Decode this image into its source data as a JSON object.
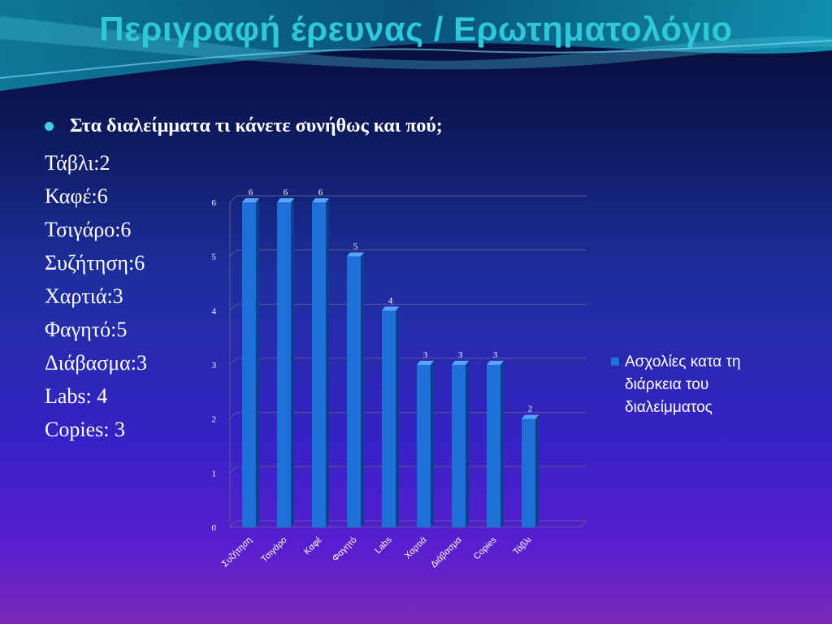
{
  "slide": {
    "title": "Περιγραφή έρευνας / Ερωτηματολόγιο",
    "bullet": "Στα διαλείμματα τι κάνετε συνήθως και πού;",
    "stats": [
      "Τάβλι:2",
      "Καφέ:6",
      "Τσιγάρο:6",
      "Συζήτηση:6",
      "Χαρτιά:3",
      "Φαγητό:5",
      "Διάβασμα:3",
      "Labs: 4",
      "Copies: 3"
    ]
  },
  "chart_data": {
    "type": "bar",
    "categories": [
      "Συζήτηση",
      "Τσιγάρο",
      "Καφέ",
      "Φαγητό",
      "Labs",
      "Χαρτιά",
      "Διάβασμα",
      "Copies",
      "Τάβλι"
    ],
    "series": [
      {
        "name": "Ασχολίες κατα τη διάρκεια του διαλείμματος",
        "values": [
          6,
          6,
          6,
          5,
          4,
          3,
          3,
          3,
          2
        ]
      }
    ],
    "ylim": [
      0,
      6
    ],
    "yticks": [
      0,
      1,
      2,
      3,
      4,
      5,
      6
    ],
    "grid": true,
    "legend": "right",
    "data_labels": true,
    "bar_color": "#1f6fd8"
  }
}
